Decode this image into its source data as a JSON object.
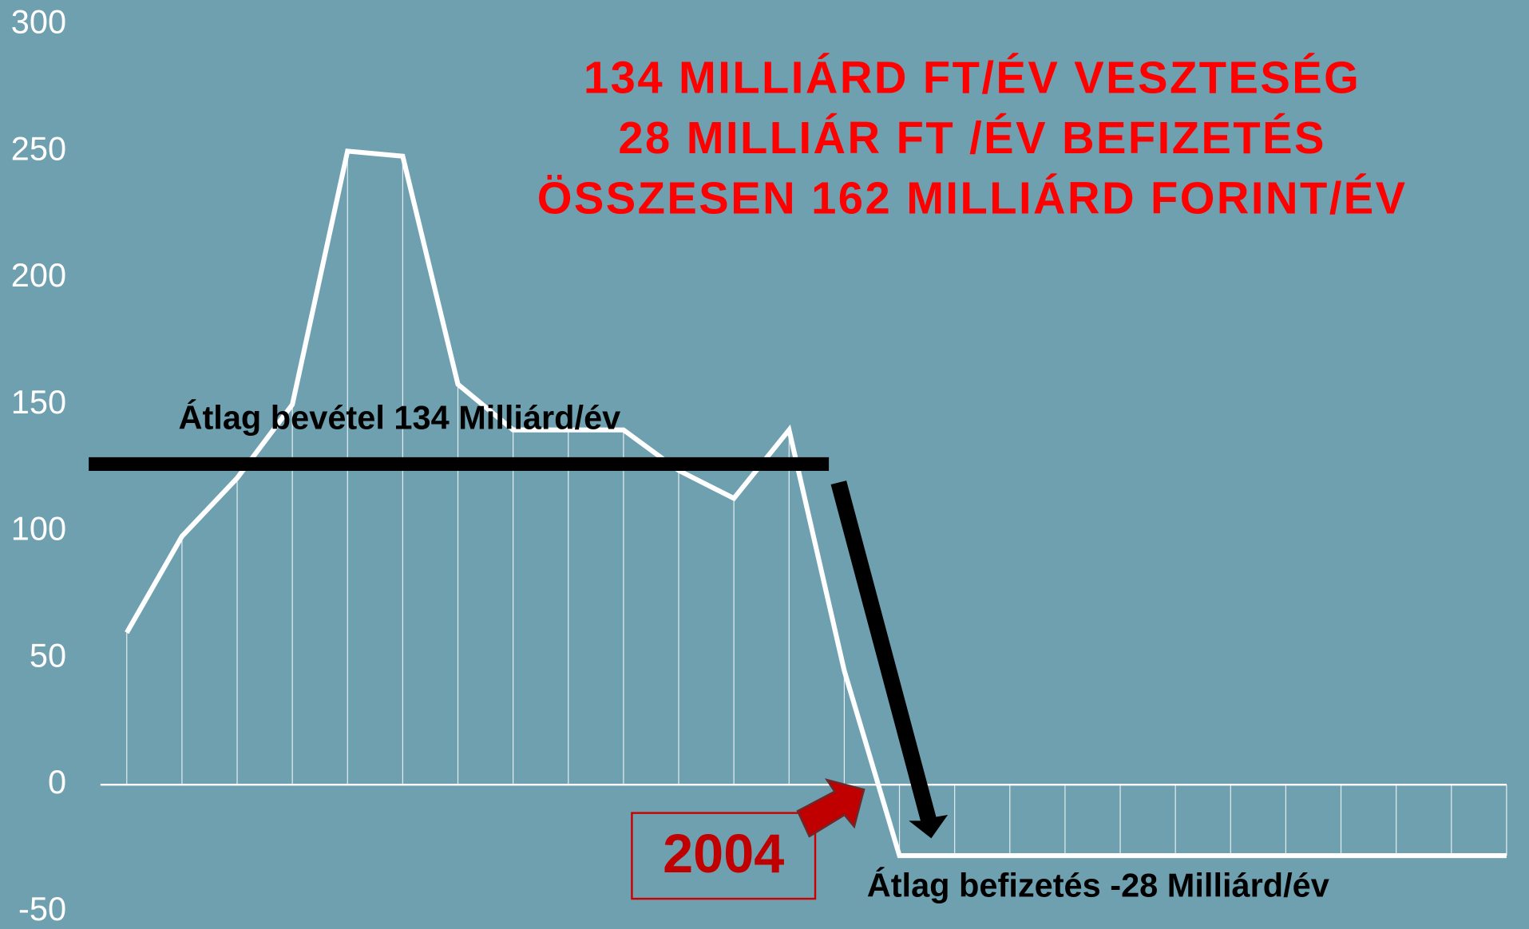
{
  "chart_data": {
    "type": "line",
    "title": [
      "134 MILLIÁRD FT/ÉV VESZTESÉG",
      "28 MILLIÁR FT /ÉV BEFIZETÉS",
      "ÖSSZESEN 162 MILLIÁRD FORINT/ÉV"
    ],
    "annotations": [
      "Átlag bevétel 134 Milliárd/év",
      "Átlag befizetés -28 Milliárd/év",
      "2004"
    ],
    "categories": [
      null,
      null,
      null,
      null,
      null,
      null,
      null,
      null,
      null,
      null,
      null,
      null,
      null,
      null,
      null,
      null,
      null,
      null,
      null,
      null,
      null,
      null,
      null,
      null,
      null,
      null
    ],
    "series": [
      {
        "color": "#ffffff",
        "values": [
          60,
          98,
          121,
          150,
          250,
          248,
          158,
          140,
          140,
          140,
          124,
          113,
          140,
          45,
          -28,
          -28,
          -28,
          -28,
          -28,
          -28,
          -28,
          -28,
          -28,
          -28,
          -28,
          -28
        ]
      }
    ],
    "ylim": [
      -50,
      300
    ],
    "yticks": [
      -50,
      0,
      50,
      100,
      150,
      200,
      250,
      300
    ]
  }
}
